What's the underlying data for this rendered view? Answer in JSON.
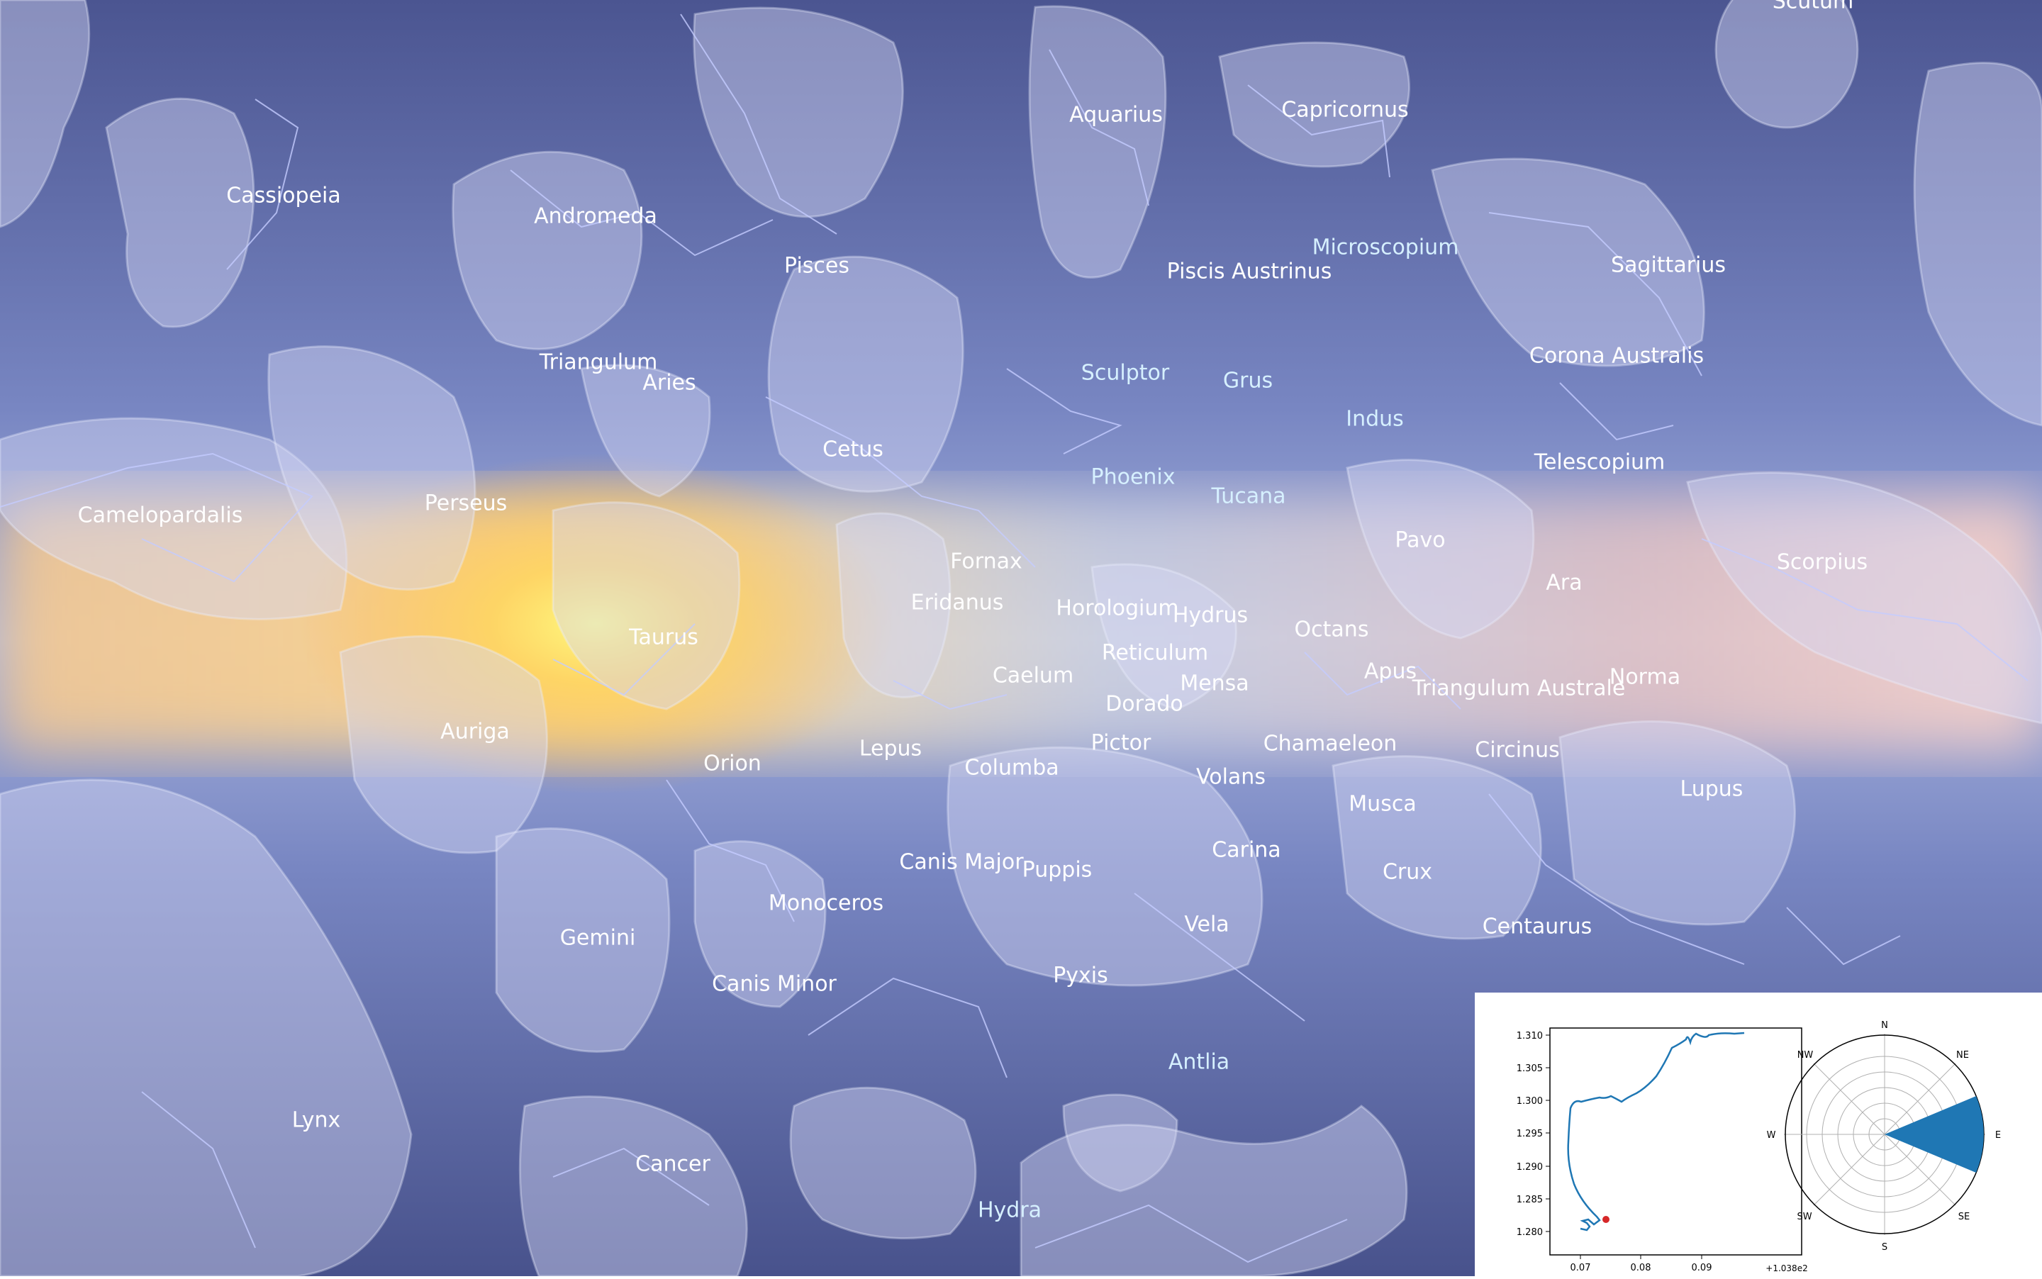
{
  "sky": {
    "colors": {
      "background_top": "#4a5490",
      "background_mid": "#8a9bd0",
      "milky_band": "#f4dca8",
      "sun_glow": "#fff36a",
      "figure": "#c8cef0",
      "constellation_line": "#b8c0ff"
    },
    "constellations": [
      {
        "id": "cassiopeia",
        "name": "Cassiopeia",
        "tone": "w"
      },
      {
        "id": "andromeda",
        "name": "Andromeda",
        "tone": "w"
      },
      {
        "id": "pisces",
        "name": "Pisces",
        "tone": "w"
      },
      {
        "id": "aquarius",
        "name": "Aquarius",
        "tone": "w"
      },
      {
        "id": "capricornus",
        "name": "Capricornus",
        "tone": "w"
      },
      {
        "id": "scutum",
        "name": "Scutum",
        "tone": "w"
      },
      {
        "id": "microscopium",
        "name": "Microscopium",
        "tone": "b"
      },
      {
        "id": "piscis-austrinus",
        "name": "Piscis Austrinus",
        "tone": "w"
      },
      {
        "id": "sagittarius",
        "name": "Sagittarius",
        "tone": "w"
      },
      {
        "id": "triangulum",
        "name": "Triangulum",
        "tone": "w"
      },
      {
        "id": "aries",
        "name": "Aries",
        "tone": "w"
      },
      {
        "id": "sculptor",
        "name": "Sculptor",
        "tone": "b"
      },
      {
        "id": "grus",
        "name": "Grus",
        "tone": "b"
      },
      {
        "id": "corona-australis",
        "name": "Corona Australis",
        "tone": "w"
      },
      {
        "id": "indus",
        "name": "Indus",
        "tone": "b"
      },
      {
        "id": "cetus",
        "name": "Cetus",
        "tone": "w"
      },
      {
        "id": "telescopium",
        "name": "Telescopium",
        "tone": "w"
      },
      {
        "id": "phoenix",
        "name": "Phoenix",
        "tone": "b"
      },
      {
        "id": "tucana",
        "name": "Tucana",
        "tone": "b"
      },
      {
        "id": "camelopardalis",
        "name": "Camelopardalis",
        "tone": "w"
      },
      {
        "id": "perseus",
        "name": "Perseus",
        "tone": "w"
      },
      {
        "id": "pavo",
        "name": "Pavo",
        "tone": "w"
      },
      {
        "id": "fornax",
        "name": "Fornax",
        "tone": "w"
      },
      {
        "id": "scorpius",
        "name": "Scorpius",
        "tone": "w"
      },
      {
        "id": "ara",
        "name": "Ara",
        "tone": "w"
      },
      {
        "id": "eridanus",
        "name": "Eridanus",
        "tone": "w"
      },
      {
        "id": "horologium",
        "name": "Horologium",
        "tone": "w"
      },
      {
        "id": "hydrus",
        "name": "Hydrus",
        "tone": "w"
      },
      {
        "id": "octans",
        "name": "Octans",
        "tone": "w"
      },
      {
        "id": "taurus",
        "name": "Taurus",
        "tone": "w"
      },
      {
        "id": "reticulum",
        "name": "Reticulum",
        "tone": "w"
      },
      {
        "id": "apus",
        "name": "Apus",
        "tone": "w"
      },
      {
        "id": "caelum",
        "name": "Caelum",
        "tone": "w"
      },
      {
        "id": "mensa",
        "name": "Mensa",
        "tone": "w"
      },
      {
        "id": "triangulum-australe",
        "name": "Triangulum Australe",
        "tone": "w"
      },
      {
        "id": "norma",
        "name": "Norma",
        "tone": "w"
      },
      {
        "id": "dorado",
        "name": "Dorado",
        "tone": "w"
      },
      {
        "id": "auriga",
        "name": "Auriga",
        "tone": "w"
      },
      {
        "id": "chamaeleon",
        "name": "Chamaeleon",
        "tone": "w"
      },
      {
        "id": "pictor",
        "name": "Pictor",
        "tone": "w"
      },
      {
        "id": "lepus",
        "name": "Lepus",
        "tone": "w"
      },
      {
        "id": "circinus",
        "name": "Circinus",
        "tone": "w"
      },
      {
        "id": "orion",
        "name": "Orion",
        "tone": "w"
      },
      {
        "id": "columba",
        "name": "Columba",
        "tone": "w"
      },
      {
        "id": "volans",
        "name": "Volans",
        "tone": "w"
      },
      {
        "id": "lupus",
        "name": "Lupus",
        "tone": "w"
      },
      {
        "id": "musca",
        "name": "Musca",
        "tone": "w"
      },
      {
        "id": "carina",
        "name": "Carina",
        "tone": "w"
      },
      {
        "id": "canis-major",
        "name": "Canis Major",
        "tone": "w"
      },
      {
        "id": "puppis",
        "name": "Puppis",
        "tone": "w"
      },
      {
        "id": "crux",
        "name": "Crux",
        "tone": "w"
      },
      {
        "id": "monoceros",
        "name": "Monoceros",
        "tone": "w"
      },
      {
        "id": "vela",
        "name": "Vela",
        "tone": "w"
      },
      {
        "id": "centaurus",
        "name": "Centaurus",
        "tone": "w"
      },
      {
        "id": "gemini",
        "name": "Gemini",
        "tone": "w"
      },
      {
        "id": "pyxis",
        "name": "Pyxis",
        "tone": "w"
      },
      {
        "id": "canis-minor",
        "name": "Canis Minor",
        "tone": "w"
      },
      {
        "id": "antlia",
        "name": "Antlia",
        "tone": "b"
      },
      {
        "id": "lynx",
        "name": "Lynx",
        "tone": "w"
      },
      {
        "id": "cancer",
        "name": "Cancer",
        "tone": "w"
      },
      {
        "id": "hydra",
        "name": "Hydra",
        "tone": "b"
      }
    ]
  },
  "inset": {
    "track_plot": {
      "y_ticks": [
        "1.310",
        "1.305",
        "1.300",
        "1.295",
        "1.290",
        "1.285",
        "1.280"
      ],
      "x_ticks": [
        "0.07",
        "0.08",
        "0.09"
      ],
      "x_offset": "+1.038e2",
      "line_color": "#1f77b4",
      "marker_color": "#d62728"
    },
    "compass_rose": {
      "labels": [
        "N",
        "NE",
        "E",
        "SE",
        "S",
        "SW",
        "W",
        "NW"
      ],
      "heading": "E",
      "fill_color": "#1f77b4"
    }
  }
}
